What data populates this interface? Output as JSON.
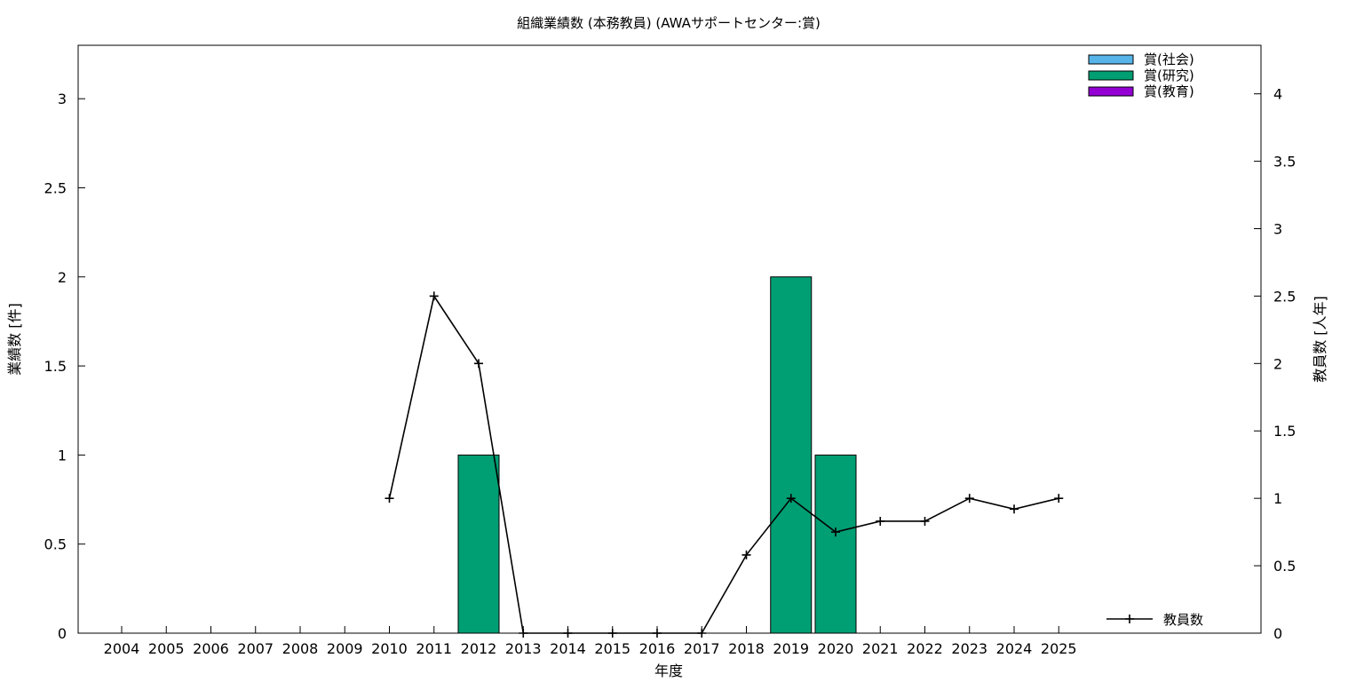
{
  "chart_data": {
    "type": "bar",
    "title": "組織業績数 (本務教員) (AWAサポートセンター:賞)",
    "xlabel": "年度",
    "ylabel": "業績数 [件]",
    "y2label": "教員数 [人年]",
    "categories": [
      "2004",
      "2005",
      "2006",
      "2007",
      "2008",
      "2009",
      "2010",
      "2011",
      "2012",
      "2013",
      "2014",
      "2015",
      "2016",
      "2017",
      "2018",
      "2019",
      "2020",
      "2021",
      "2022",
      "2023",
      "2024",
      "2025"
    ],
    "ylim": [
      0,
      3.3
    ],
    "y2lim": [
      0,
      4.36
    ],
    "yticks": [
      "0",
      "0.5",
      "1",
      "1.5",
      "2",
      "2.5",
      "3"
    ],
    "y2ticks": [
      "0",
      "0.5",
      "1",
      "1.5",
      "2",
      "2.5",
      "3",
      "3.5",
      "4"
    ],
    "grid": false,
    "legend_placement": "top-right",
    "series": [
      {
        "name": "賞(社会)",
        "kind": "bar",
        "color": "#56b4e9",
        "values": [
          0,
          0,
          0,
          0,
          0,
          0,
          0,
          0,
          0,
          0,
          0,
          0,
          0,
          0,
          0,
          0,
          0,
          0,
          0,
          0,
          0,
          0
        ]
      },
      {
        "name": "賞(研究)",
        "kind": "bar",
        "color": "#009e73",
        "values": [
          0,
          0,
          0,
          0,
          0,
          0,
          0,
          0,
          1,
          0,
          0,
          0,
          0,
          0,
          0,
          2,
          1,
          0,
          0,
          0,
          0,
          0
        ]
      },
      {
        "name": "賞(教育)",
        "kind": "bar",
        "color": "#9400d3",
        "values": [
          0,
          0,
          0,
          0,
          0,
          0,
          0,
          0,
          0,
          0,
          0,
          0,
          0,
          0,
          0,
          0,
          0,
          0,
          0,
          0,
          0,
          0
        ]
      },
      {
        "name": "教員数",
        "kind": "line",
        "axis": "y2",
        "color": "#000000",
        "values": [
          null,
          null,
          null,
          null,
          null,
          null,
          1,
          2.5,
          2,
          0,
          0,
          0,
          0,
          0,
          0.58,
          1,
          0.75,
          0.83,
          0.83,
          1,
          0.92,
          1
        ]
      }
    ]
  }
}
